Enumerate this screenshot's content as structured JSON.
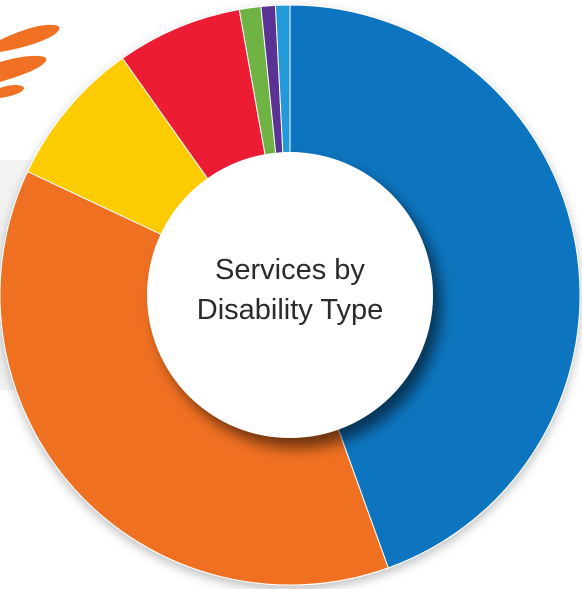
{
  "chart_data": {
    "type": "pie",
    "variant": "donut",
    "title": "",
    "center_label": [
      "Services by",
      "Disability Type"
    ],
    "categories": [
      "",
      "",
      "",
      "",
      "",
      "",
      ""
    ],
    "values": [
      44.5,
      37.5,
      8.2,
      7.0,
      1.2,
      0.8,
      0.8
    ],
    "colors": [
      "#1175bf",
      "#f07024",
      "#fccc00",
      "#ec1f35",
      "#6fb344",
      "#5a3393",
      "#229ad9"
    ],
    "start_angle_deg": 0,
    "direction": "clockwise",
    "legend": "none",
    "labels_shown": false
  },
  "decoration": {
    "swoosh_color": "#f07024"
  }
}
